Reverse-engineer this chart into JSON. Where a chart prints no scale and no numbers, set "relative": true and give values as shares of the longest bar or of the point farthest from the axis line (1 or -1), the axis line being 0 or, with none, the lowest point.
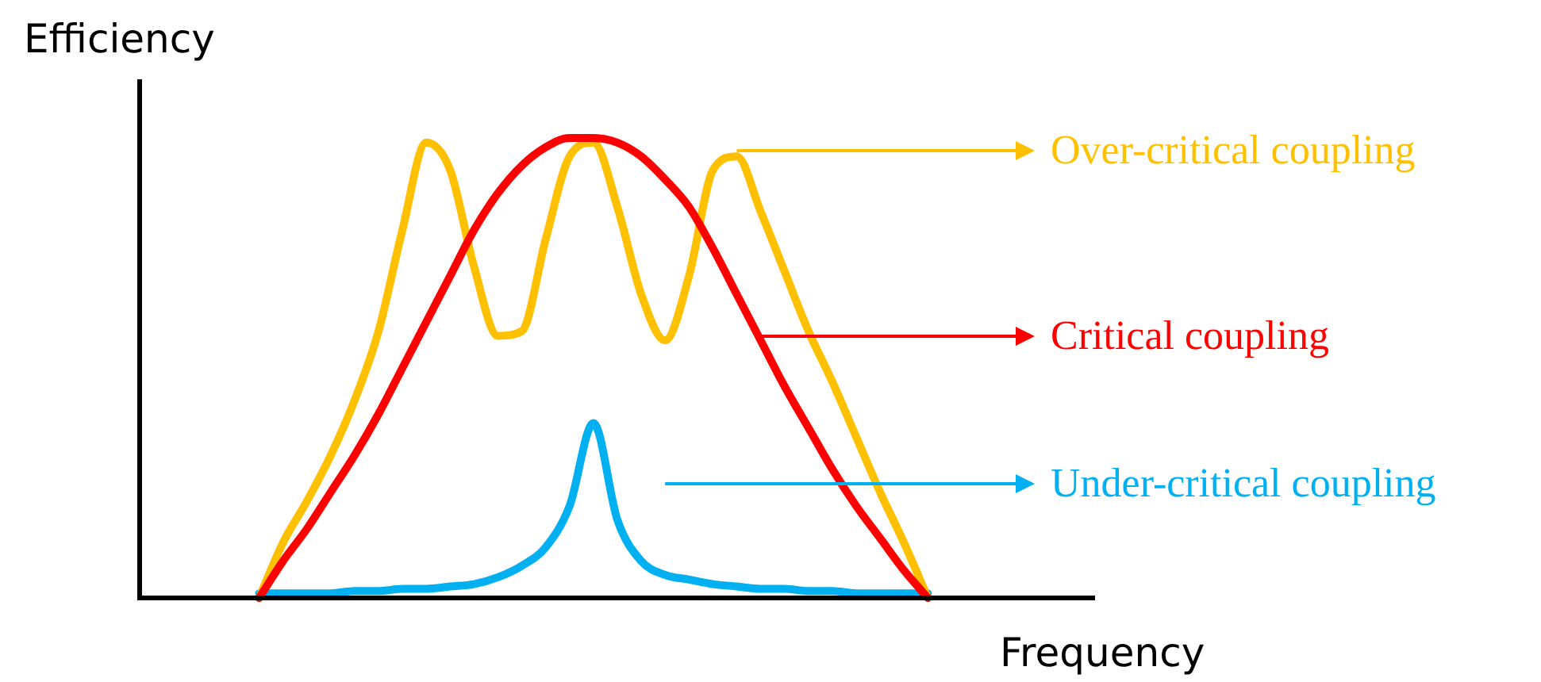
{
  "chart_data": {
    "type": "line",
    "relative": true,
    "xlabel": "Frequency",
    "ylabel": "Efficiency",
    "legend": "right",
    "marker": "none",
    "categories": [
      null,
      null,
      null,
      null,
      null,
      null,
      null,
      null,
      null,
      null,
      null,
      null,
      null,
      null,
      null,
      null,
      null,
      null,
      null,
      null,
      null,
      null,
      null,
      null,
      null,
      null,
      null,
      null,
      null,
      null,
      null,
      null,
      null,
      null,
      null,
      null,
      null,
      null,
      null,
      null,
      null
    ],
    "series": [
      {
        "name": "Critical coupling",
        "color": "#ff0000",
        "values": [
          null,
          null,
          null,
          null,
          null,
          0,
          0.08,
          0.15,
          0.23,
          0.31,
          0.4,
          0.5,
          0.6,
          0.7,
          0.8,
          0.88,
          0.94,
          0.98,
          1.0,
          1.0,
          0.99,
          0.96,
          0.91,
          0.85,
          0.76,
          0.66,
          0.56,
          0.46,
          0.37,
          0.28,
          0.2,
          0.13,
          0.06,
          0,
          null,
          null,
          null,
          null,
          null,
          null,
          null
        ]
      },
      {
        "name": "Over-critical coupling",
        "color": "#ffc000",
        "values": [
          null,
          null,
          null,
          null,
          null,
          0,
          0.12,
          0.21,
          0.31,
          0.43,
          0.58,
          0.8,
          0.99,
          0.93,
          0.72,
          0.57,
          0.58,
          0.78,
          0.96,
          0.99,
          0.85,
          0.66,
          0.56,
          0.7,
          0.93,
          0.96,
          0.84,
          0.71,
          0.58,
          0.47,
          0.35,
          0.23,
          0.12,
          0,
          null,
          null,
          null,
          null,
          null,
          null,
          null
        ]
      },
      {
        "name": "Under-critical coupling",
        "color": "#00b0f0",
        "values": [
          null,
          null,
          null,
          null,
          null,
          0.01,
          0.01,
          0.01,
          0.01,
          0.015,
          0.015,
          0.02,
          0.02,
          0.025,
          0.03,
          0.045,
          0.07,
          0.11,
          0.2,
          0.38,
          0.17,
          0.08,
          0.05,
          0.04,
          0.03,
          0.025,
          0.02,
          0.02,
          0.015,
          0.015,
          0.01,
          0.01,
          0.01,
          0.01,
          null,
          null,
          null,
          null,
          null,
          null,
          null
        ]
      }
    ]
  }
}
